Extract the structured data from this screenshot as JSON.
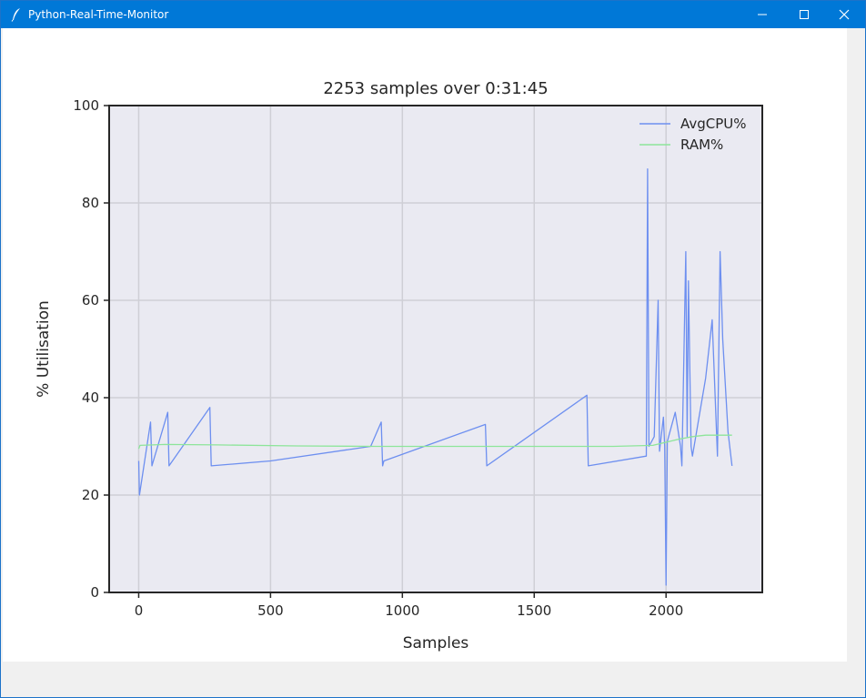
{
  "window": {
    "title": "Python-Real-Time-Monitor",
    "icon": "feather-icon",
    "controls": [
      "minimize-icon",
      "maximize-icon",
      "close-icon"
    ],
    "titlebar_color": "#0078d7"
  },
  "chart_data": {
    "type": "line",
    "title": "2253 samples over 0:31:45",
    "xlabel": "Samples",
    "ylabel": "% Utilisation",
    "xlim": [
      -112,
      2365
    ],
    "ylim": [
      0,
      100
    ],
    "x_ticks": [
      "0",
      "500",
      "1000",
      "1500",
      "2000"
    ],
    "y_ticks": [
      "0",
      "20",
      "40",
      "60",
      "80",
      "100"
    ],
    "grid": true,
    "legend_position": "top-right",
    "background": "#eaeaf2",
    "series": [
      {
        "name": "AvgCPU%",
        "color": "#6d8ff0",
        "x": [
          0,
          3,
          45,
          50,
          110,
          115,
          270,
          275,
          500,
          880,
          920,
          925,
          930,
          1315,
          1320,
          1700,
          1705,
          1925,
          1930,
          1935,
          1955,
          1970,
          1975,
          1990,
          1995,
          2000,
          2005,
          2035,
          2055,
          2060,
          2075,
          2080,
          2085,
          2095,
          2100,
          2150,
          2175,
          2195,
          2205,
          2215,
          2235,
          2250
        ],
        "y": [
          27,
          20,
          35,
          26,
          37,
          26,
          38,
          26,
          27,
          30,
          35,
          26,
          27,
          34.5,
          26,
          40.5,
          26,
          28,
          87,
          30,
          32,
          60,
          29,
          36,
          30,
          1.5,
          31,
          37,
          30,
          26,
          70,
          32,
          64,
          30,
          28,
          44,
          56,
          28,
          70,
          52,
          33,
          26
        ]
      },
      {
        "name": "RAM%",
        "color": "#8de59a",
        "x": [
          0,
          5,
          100,
          300,
          600,
          900,
          1200,
          1500,
          1800,
          1950,
          2050,
          2100,
          2150,
          2250
        ],
        "y": [
          29.5,
          30.2,
          30.4,
          30.3,
          30.1,
          30.0,
          30.0,
          30.0,
          30.0,
          30.2,
          31.5,
          32.0,
          32.3,
          32.3
        ]
      }
    ]
  }
}
